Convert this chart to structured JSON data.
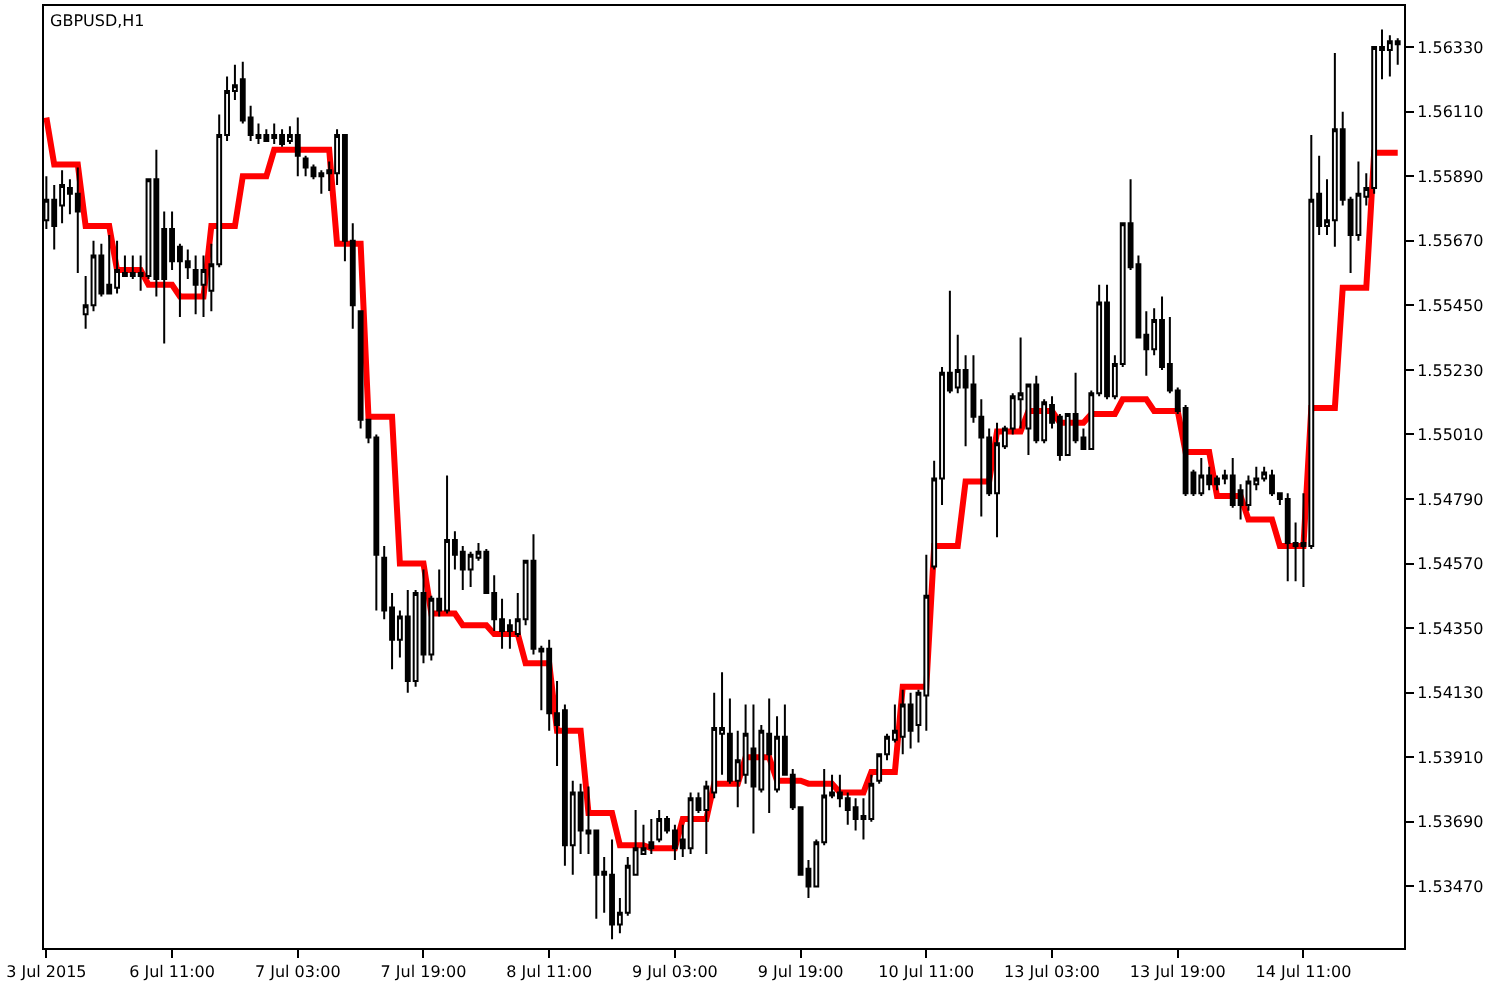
{
  "chart_data": {
    "type": "candlestick",
    "title": "GBPUSD,H1",
    "categories": [
      "3 Jul 2015",
      null,
      null,
      null,
      null,
      null,
      null,
      null,
      null,
      null,
      null,
      null,
      null,
      null,
      null,
      null,
      "6 Jul 11:00",
      null,
      null,
      null,
      null,
      null,
      null,
      null,
      null,
      null,
      null,
      null,
      null,
      null,
      null,
      null,
      "7 Jul 03:00",
      null,
      null,
      null,
      null,
      null,
      null,
      null,
      null,
      null,
      null,
      null,
      null,
      null,
      null,
      null,
      "7 Jul 19:00",
      null,
      null,
      null,
      null,
      null,
      null,
      null,
      null,
      null,
      null,
      null,
      null,
      null,
      null,
      null,
      "8 Jul 11:00",
      null,
      null,
      null,
      null,
      null,
      null,
      null,
      null,
      null,
      null,
      null,
      null,
      null,
      null,
      null,
      "9 Jul 03:00",
      null,
      null,
      null,
      null,
      null,
      null,
      null,
      null,
      null,
      null,
      null,
      null,
      null,
      null,
      null,
      "9 Jul 19:00",
      null,
      null,
      null,
      null,
      null,
      null,
      null,
      null,
      null,
      null,
      null,
      null,
      null,
      null,
      null,
      "10 Jul 11:00",
      null,
      null,
      null,
      null,
      null,
      null,
      null,
      null,
      null,
      null,
      null,
      null,
      null,
      null,
      null,
      "13 Jul 03:00",
      null,
      null,
      null,
      null,
      null,
      null,
      null,
      null,
      null,
      null,
      null,
      null,
      null,
      null,
      null,
      "13 Jul 19:00",
      null,
      null,
      null,
      null,
      null,
      null,
      null,
      null,
      null,
      null,
      null,
      null,
      null,
      null,
      null,
      "14 Jul 11:00",
      null,
      null,
      null,
      null,
      null,
      null,
      null,
      null,
      null,
      null,
      null,
      null
    ],
    "ohlc": [
      [
        1.5574,
        1.5589,
        1.5571,
        1.5581
      ],
      [
        1.5581,
        1.5586,
        1.5564,
        1.5572
      ],
      [
        1.5579,
        1.5591,
        1.5573,
        1.5586
      ],
      [
        1.5585,
        1.5588,
        1.5576,
        1.5583
      ],
      [
        1.5583,
        1.5592,
        1.5556,
        1.5577
      ],
      [
        1.5542,
        1.5555,
        1.5537,
        1.5545
      ],
      [
        1.5545,
        1.5567,
        1.5543,
        1.5562
      ],
      [
        1.5562,
        1.5566,
        1.5548,
        1.5549
      ],
      [
        1.5552,
        1.5569,
        1.5549,
        1.5549
      ],
      [
        1.5551,
        1.5567,
        1.5549,
        1.5557
      ],
      [
        1.5556,
        1.5562,
        1.5555,
        1.5555
      ],
      [
        1.5555,
        1.5562,
        1.5554,
        1.5556
      ],
      [
        1.5556,
        1.5562,
        1.555,
        1.5555
      ],
      [
        1.5555,
        1.5588,
        1.5554,
        1.5588
      ],
      [
        1.5588,
        1.5598,
        1.5548,
        1.5554
      ],
      [
        1.5571,
        1.5577,
        1.5532,
        1.5554
      ],
      [
        1.5571,
        1.5577,
        1.5557,
        1.556
      ],
      [
        1.5565,
        1.5566,
        1.5541,
        1.556
      ],
      [
        1.556,
        1.5564,
        1.5554,
        1.5558
      ],
      [
        1.5557,
        1.5562,
        1.5542,
        1.5552
      ],
      [
        1.5552,
        1.5562,
        1.5541,
        1.5557
      ],
      [
        1.555,
        1.5566,
        1.5543,
        1.5559
      ],
      [
        1.5559,
        1.561,
        1.5558,
        1.5603
      ],
      [
        1.5603,
        1.5623,
        1.5601,
        1.5618
      ],
      [
        1.5618,
        1.5627,
        1.5615,
        1.562
      ],
      [
        1.5622,
        1.5628,
        1.5607,
        1.5608
      ],
      [
        1.5609,
        1.5613,
        1.5601,
        1.5603
      ],
      [
        1.5603,
        1.5607,
        1.56,
        1.5602
      ],
      [
        1.5603,
        1.5605,
        1.5601,
        1.5601
      ],
      [
        1.5602,
        1.5607,
        1.56,
        1.5603
      ],
      [
        1.5603,
        1.5605,
        1.5599,
        1.56
      ],
      [
        1.5601,
        1.5606,
        1.56,
        1.5603
      ],
      [
        1.5603,
        1.5609,
        1.5589,
        1.5596
      ],
      [
        1.5595,
        1.5596,
        1.5589,
        1.5592
      ],
      [
        1.5592,
        1.5593,
        1.5588,
        1.5589
      ],
      [
        1.5589,
        1.5591,
        1.5583,
        1.559
      ],
      [
        1.559,
        1.5594,
        1.5584,
        1.5591
      ],
      [
        1.559,
        1.5605,
        1.5586,
        1.5603
      ],
      [
        1.5603,
        1.5603,
        1.556,
        1.5567
      ],
      [
        1.5567,
        1.5573,
        1.5537,
        1.5545
      ],
      [
        1.5543,
        1.5543,
        1.5503,
        1.5506
      ],
      [
        1.5506,
        1.5506,
        1.5498,
        1.55
      ],
      [
        1.55,
        1.5501,
        1.5441,
        1.546
      ],
      [
        1.5459,
        1.5463,
        1.5438,
        1.5441
      ],
      [
        1.5442,
        1.5447,
        1.5421,
        1.5431
      ],
      [
        1.5431,
        1.5441,
        1.5425,
        1.5439
      ],
      [
        1.5439,
        1.5448,
        1.5413,
        1.5417
      ],
      [
        1.5417,
        1.5448,
        1.5415,
        1.5447
      ],
      [
        1.5447,
        1.5455,
        1.5423,
        1.5426
      ],
      [
        1.5426,
        1.5446,
        1.5424,
        1.5445
      ],
      [
        1.5445,
        1.5455,
        1.5439,
        1.5441
      ],
      [
        1.5441,
        1.5487,
        1.544,
        1.5465
      ],
      [
        1.5465,
        1.5468,
        1.5455,
        1.546
      ],
      [
        1.5461,
        1.5463,
        1.5448,
        1.5455
      ],
      [
        1.5455,
        1.5461,
        1.5449,
        1.546
      ],
      [
        1.5459,
        1.5464,
        1.5458,
        1.5461
      ],
      [
        1.5461,
        1.5462,
        1.5447,
        1.5447
      ],
      [
        1.5447,
        1.5453,
        1.5434,
        1.5438
      ],
      [
        1.5438,
        1.5445,
        1.5428,
        1.5434
      ],
      [
        1.5436,
        1.5438,
        1.5428,
        1.5434
      ],
      [
        1.5433,
        1.5447,
        1.5432,
        1.5438
      ],
      [
        1.5438,
        1.5458,
        1.5436,
        1.5458
      ],
      [
        1.5458,
        1.5467,
        1.5426,
        1.5428
      ],
      [
        1.5428,
        1.5429,
        1.5407,
        1.5427
      ],
      [
        1.5428,
        1.5431,
        1.54,
        1.5406
      ],
      [
        1.5406,
        1.5417,
        1.5388,
        1.5402
      ],
      [
        1.5407,
        1.5409,
        1.5354,
        1.5361
      ],
      [
        1.5361,
        1.5383,
        1.5351,
        1.5379
      ],
      [
        1.5379,
        1.5382,
        1.5358,
        1.5366
      ],
      [
        1.5366,
        1.5381,
        1.5358,
        1.5365
      ],
      [
        1.5366,
        1.5366,
        1.5336,
        1.5351
      ],
      [
        1.5352,
        1.5357,
        1.5338,
        1.5351
      ],
      [
        1.5351,
        1.5363,
        1.5329,
        1.5334
      ],
      [
        1.5334,
        1.5343,
        1.5331,
        1.5338
      ],
      [
        1.5338,
        1.5357,
        1.5337,
        1.5354
      ],
      [
        1.5351,
        1.5373,
        1.5351,
        1.536
      ],
      [
        1.5358,
        1.5368,
        1.5358,
        1.536
      ],
      [
        1.5362,
        1.537,
        1.5358,
        1.536
      ],
      [
        1.5363,
        1.5373,
        1.5362,
        1.537
      ],
      [
        1.537,
        1.5371,
        1.5365,
        1.5366
      ],
      [
        1.5366,
        1.5368,
        1.5356,
        1.536
      ],
      [
        1.5363,
        1.5368,
        1.5357,
        1.536
      ],
      [
        1.536,
        1.5379,
        1.5358,
        1.5377
      ],
      [
        1.5377,
        1.5379,
        1.5372,
        1.5373
      ],
      [
        1.5373,
        1.5383,
        1.5358,
        1.5381
      ],
      [
        1.5379,
        1.5413,
        1.5377,
        1.5401
      ],
      [
        1.5399,
        1.542,
        1.5385,
        1.5401
      ],
      [
        1.5399,
        1.5411,
        1.5382,
        1.5383
      ],
      [
        1.5383,
        1.54,
        1.5374,
        1.539
      ],
      [
        1.5385,
        1.5409,
        1.5382,
        1.5399
      ],
      [
        1.5394,
        1.5409,
        1.5365,
        1.5381
      ],
      [
        1.538,
        1.5402,
        1.5379,
        1.54
      ],
      [
        1.5399,
        1.5411,
        1.5372,
        1.5392
      ],
      [
        1.538,
        1.5405,
        1.5379,
        1.5398
      ],
      [
        1.5398,
        1.5409,
        1.5385,
        1.5385
      ],
      [
        1.5385,
        1.5387,
        1.5373,
        1.5374
      ],
      [
        1.5374,
        1.5374,
        1.5351,
        1.5351
      ],
      [
        1.5353,
        1.5356,
        1.5343,
        1.5347
      ],
      [
        1.5347,
        1.5363,
        1.5347,
        1.5362
      ],
      [
        1.5362,
        1.5387,
        1.5361,
        1.5378
      ],
      [
        1.5378,
        1.5385,
        1.5377,
        1.5379
      ],
      [
        1.5379,
        1.5385,
        1.5374,
        1.5377
      ],
      [
        1.5377,
        1.5379,
        1.5368,
        1.5373
      ],
      [
        1.5374,
        1.5377,
        1.5366,
        1.537
      ],
      [
        1.537,
        1.5377,
        1.5363,
        1.5371
      ],
      [
        1.537,
        1.5385,
        1.5369,
        1.5382
      ],
      [
        1.5383,
        1.5392,
        1.5382,
        1.5392
      ],
      [
        1.5392,
        1.5399,
        1.539,
        1.5398
      ],
      [
        1.5397,
        1.5409,
        1.5396,
        1.54
      ],
      [
        1.5398,
        1.5414,
        1.5392,
        1.5409
      ],
      [
        1.5409,
        1.5413,
        1.5394,
        1.54
      ],
      [
        1.5402,
        1.5414,
        1.5396,
        1.5413
      ],
      [
        1.5412,
        1.546,
        1.54,
        1.5446
      ],
      [
        1.5456,
        1.5492,
        1.5455,
        1.5486
      ],
      [
        1.5486,
        1.5524,
        1.5477,
        1.5522
      ],
      [
        1.5522,
        1.555,
        1.5515,
        1.5516
      ],
      [
        1.5517,
        1.5535,
        1.5515,
        1.5523
      ],
      [
        1.5523,
        1.5528,
        1.5497,
        1.5517
      ],
      [
        1.5518,
        1.5528,
        1.5505,
        1.5507
      ],
      [
        1.5507,
        1.5513,
        1.5473,
        1.55
      ],
      [
        1.55,
        1.5503,
        1.548,
        1.5481
      ],
      [
        1.5481,
        1.5505,
        1.5466,
        1.5498
      ],
      [
        1.5497,
        1.5504,
        1.5496,
        1.5503
      ],
      [
        1.5503,
        1.5515,
        1.5501,
        1.5514
      ],
      [
        1.5513,
        1.5534,
        1.5503,
        1.5515
      ],
      [
        1.5503,
        1.5518,
        1.5494,
        1.5518
      ],
      [
        1.5518,
        1.5521,
        1.5498,
        1.5499
      ],
      [
        1.5499,
        1.5513,
        1.5498,
        1.5512
      ],
      [
        1.5511,
        1.5514,
        1.5503,
        1.5505
      ],
      [
        1.5507,
        1.5508,
        1.5492,
        1.5494
      ],
      [
        1.5494,
        1.5508,
        1.5494,
        1.5508
      ],
      [
        1.5508,
        1.5522,
        1.5498,
        1.5499
      ],
      [
        1.55,
        1.5503,
        1.5496,
        1.5496
      ],
      [
        1.5496,
        1.5516,
        1.5496,
        1.5515
      ],
      [
        1.5515,
        1.5552,
        1.5514,
        1.5546
      ],
      [
        1.5546,
        1.5552,
        1.5513,
        1.5514
      ],
      [
        1.5514,
        1.5528,
        1.5513,
        1.5525
      ],
      [
        1.5525,
        1.5573,
        1.5524,
        1.5573
      ],
      [
        1.5573,
        1.5588,
        1.5557,
        1.5558
      ],
      [
        1.5559,
        1.5562,
        1.5534,
        1.5534
      ],
      [
        1.5535,
        1.5543,
        1.5521,
        1.553
      ],
      [
        1.553,
        1.5544,
        1.5528,
        1.554
      ],
      [
        1.554,
        1.5548,
        1.5523,
        1.5524
      ],
      [
        1.5525,
        1.5541,
        1.5515,
        1.5516
      ],
      [
        1.5516,
        1.5517,
        1.5508,
        1.5509
      ],
      [
        1.551,
        1.5511,
        1.548,
        1.5481
      ],
      [
        1.5488,
        1.5489,
        1.548,
        1.5481
      ],
      [
        1.5481,
        1.5493,
        1.548,
        1.5487
      ],
      [
        1.5487,
        1.549,
        1.5482,
        1.5484
      ],
      [
        1.5486,
        1.5487,
        1.5482,
        1.5484
      ],
      [
        1.5487,
        1.5489,
        1.5484,
        1.5486
      ],
      [
        1.5487,
        1.5493,
        1.5476,
        1.5477
      ],
      [
        1.5482,
        1.5484,
        1.5472,
        1.5477
      ],
      [
        1.5477,
        1.5487,
        1.5475,
        1.5485
      ],
      [
        1.5484,
        1.549,
        1.5482,
        1.5486
      ],
      [
        1.5486,
        1.549,
        1.5485,
        1.5488
      ],
      [
        1.5487,
        1.5489,
        1.548,
        1.5481
      ],
      [
        1.5481,
        1.5481,
        1.5477,
        1.5479
      ],
      [
        1.5479,
        1.5481,
        1.5451,
        1.5464
      ],
      [
        1.5464,
        1.5471,
        1.5451,
        1.5463
      ],
      [
        1.5463,
        1.5481,
        1.5449,
        1.5464
      ],
      [
        1.5463,
        1.5603,
        1.5462,
        1.5581
      ],
      [
        1.5583,
        1.5596,
        1.5569,
        1.5572
      ],
      [
        1.5572,
        1.5588,
        1.5569,
        1.5574
      ],
      [
        1.5574,
        1.5631,
        1.5565,
        1.5605
      ],
      [
        1.5605,
        1.5611,
        1.5579,
        1.5581
      ],
      [
        1.5581,
        1.5582,
        1.5556,
        1.5569
      ],
      [
        1.5569,
        1.5594,
        1.5567,
        1.5583
      ],
      [
        1.5582,
        1.559,
        1.5579,
        1.5585
      ],
      [
        1.5585,
        1.5633,
        1.5583,
        1.5633
      ],
      [
        1.5633,
        1.5639,
        1.5622,
        1.5632
      ],
      [
        1.5632,
        1.5637,
        1.5623,
        1.5635
      ],
      [
        1.5634,
        1.5636,
        1.5627,
        1.5635
      ]
    ],
    "series": [
      {
        "type": "line",
        "color": "#ff0000",
        "values": [
          1.5609,
          1.5593,
          1.5593,
          1.5593,
          1.5593,
          1.5572,
          1.5572,
          1.5572,
          1.5572,
          1.5557,
          1.5557,
          1.5557,
          1.5557,
          1.5552,
          1.5552,
          1.5552,
          1.5552,
          1.5548,
          1.5548,
          1.5548,
          1.5548,
          1.5572,
          1.5572,
          1.5572,
          1.5572,
          1.5589,
          1.5589,
          1.5589,
          1.5589,
          1.5598,
          1.5598,
          1.5598,
          1.5598,
          1.5598,
          1.5598,
          1.5598,
          1.5598,
          1.5566,
          1.5566,
          1.5566,
          1.5566,
          1.5507,
          1.5507,
          1.5507,
          1.5507,
          1.5457,
          1.5457,
          1.5457,
          1.5457,
          1.544,
          1.544,
          1.544,
          1.544,
          1.5436,
          1.5436,
          1.5436,
          1.5436,
          1.5433,
          1.5433,
          1.5433,
          1.5433,
          1.5423,
          1.5423,
          1.5423,
          1.5423,
          1.54,
          1.54,
          1.54,
          1.54,
          1.5372,
          1.5372,
          1.5372,
          1.5372,
          1.5361,
          1.5361,
          1.5361,
          1.5361,
          1.536,
          1.536,
          1.536,
          1.536,
          1.537,
          1.537,
          1.537,
          1.537,
          1.5382,
          1.5382,
          1.5382,
          1.5382,
          1.5391,
          1.5391,
          1.5391,
          1.5391,
          1.5383,
          1.5383,
          1.5383,
          1.5383,
          1.5382,
          1.5382,
          1.5382,
          1.5382,
          1.5379,
          1.5379,
          1.5379,
          1.5379,
          1.5386,
          1.5386,
          1.5386,
          1.5386,
          1.5415,
          1.5415,
          1.5415,
          1.5415,
          1.5463,
          1.5463,
          1.5463,
          1.5463,
          1.5485,
          1.5485,
          1.5485,
          1.5485,
          1.5502,
          1.5502,
          1.5502,
          1.5502,
          1.5509,
          1.5509,
          1.5509,
          1.5509,
          1.5505,
          1.5505,
          1.5505,
          1.5505,
          1.5508,
          1.5508,
          1.5508,
          1.5508,
          1.5513,
          1.5513,
          1.5513,
          1.5513,
          1.5509,
          1.5509,
          1.5509,
          1.5509,
          1.5495,
          1.5495,
          1.5495,
          1.5495,
          1.548,
          1.548,
          1.548,
          1.548,
          1.5472,
          1.5472,
          1.5472,
          1.5472,
          1.5463,
          1.5463,
          1.5463,
          1.5463,
          1.551,
          1.551,
          1.551,
          1.551,
          1.5551,
          1.5551,
          1.5551,
          1.5551,
          1.5597,
          1.5597,
          1.5597,
          1.5597
        ]
      }
    ],
    "ylim": [
      1.5326,
      1.5647
    ],
    "yticks": [
      {
        "value": 1.5347,
        "label": "1.53470"
      },
      {
        "value": 1.5369,
        "label": "1.53690"
      },
      {
        "value": 1.5391,
        "label": "1.53910"
      },
      {
        "value": 1.5413,
        "label": "1.54130"
      },
      {
        "value": 1.5435,
        "label": "1.54350"
      },
      {
        "value": 1.5457,
        "label": "1.54570"
      },
      {
        "value": 1.5479,
        "label": "1.54790"
      },
      {
        "value": 1.5501,
        "label": "1.55010"
      },
      {
        "value": 1.5523,
        "label": "1.55230"
      },
      {
        "value": 1.5545,
        "label": "1.55450"
      },
      {
        "value": 1.5567,
        "label": "1.55670"
      },
      {
        "value": 1.5589,
        "label": "1.55890"
      },
      {
        "value": 1.5611,
        "label": "1.56110"
      },
      {
        "value": 1.5633,
        "label": "1.56330"
      }
    ],
    "grid": false
  }
}
